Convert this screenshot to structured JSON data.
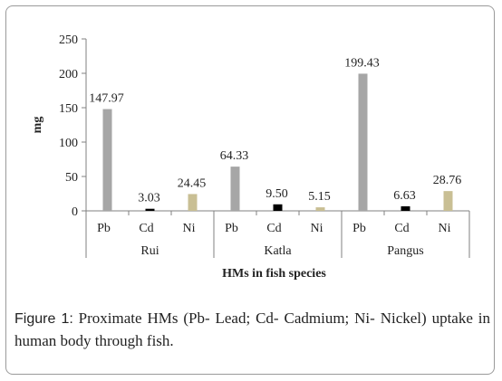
{
  "chart_data": {
    "type": "bar",
    "ylabel": "mg",
    "xlabel": "HMs in fish species",
    "ylim": [
      0,
      250
    ],
    "yticks": [
      0,
      50,
      100,
      150,
      200,
      250
    ],
    "groups": [
      "Rui",
      "Katla",
      "Pangus"
    ],
    "categories": [
      "Pb",
      "Cd",
      "Ni"
    ],
    "values": [
      [
        147.97,
        3.03,
        24.45
      ],
      [
        64.33,
        9.5,
        5.15
      ],
      [
        199.43,
        6.63,
        28.76
      ]
    ],
    "data_labels": [
      [
        "147.97",
        "3.03",
        "24.45"
      ],
      [
        "64.33",
        "9.50",
        "5.15"
      ],
      [
        "199.43",
        "6.63",
        "28.76"
      ]
    ],
    "colors": {
      "Pb": "#a6a6a6",
      "Cd": "#000000",
      "Ni": "#c9bf94"
    },
    "grid": false,
    "legend": "none"
  },
  "caption": {
    "label": "Figure 1:",
    "text": " Proximate HMs (Pb- Lead; Cd- Cadmium; Ni- Nickel) uptake in human body through fish."
  }
}
